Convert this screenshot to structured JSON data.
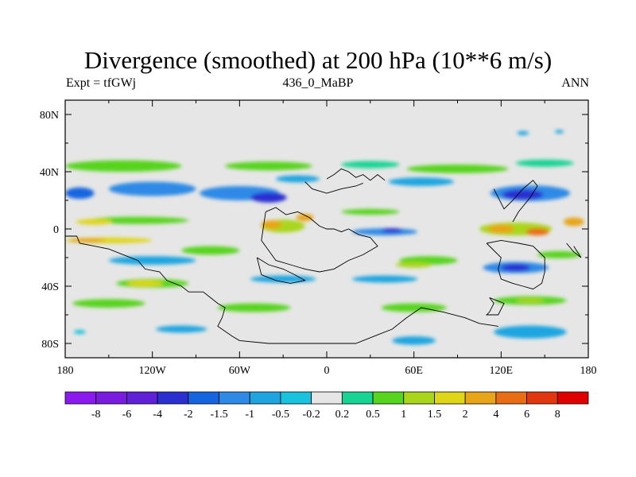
{
  "chart_data": {
    "type": "heatmap",
    "title": "Divergence (smoothed) at 200 hPa (10**6 m/s)",
    "subtitle_left": "Expt = tfGWj",
    "subtitle_center": "436_0_MaBP",
    "subtitle_right": "ANN",
    "x_ticks": [
      {
        "value": -180,
        "label": "180"
      },
      {
        "value": -120,
        "label": "120W"
      },
      {
        "value": -60,
        "label": "60W"
      },
      {
        "value": 0,
        "label": "0"
      },
      {
        "value": 60,
        "label": "60E"
      },
      {
        "value": 120,
        "label": "120E"
      },
      {
        "value": 180,
        "label": "180"
      }
    ],
    "y_ticks": [
      {
        "value": 80,
        "label": "80N"
      },
      {
        "value": 40,
        "label": "40N"
      },
      {
        "value": 0,
        "label": "0"
      },
      {
        "value": -40,
        "label": "40S"
      },
      {
        "value": -80,
        "label": "80S"
      }
    ],
    "xlim": [
      -180,
      180
    ],
    "ylim": [
      -90,
      90
    ],
    "colorbar": {
      "colors": [
        "#8b1aee",
        "#7a1cdf",
        "#5f20d8",
        "#2b2fd1",
        "#1565e0",
        "#2d8ae6",
        "#1ea5e0",
        "#19c3dd",
        "#e6e6e6",
        "#17d494",
        "#57d41e",
        "#a9d61a",
        "#dfd617",
        "#e8a517",
        "#e96d14",
        "#e2360f",
        "#e00000"
      ],
      "labels": [
        "-8",
        "-6",
        "-4",
        "-2",
        "-1.5",
        "-1",
        "-0.5",
        "-0.2",
        "0.2",
        "0.5",
        "1",
        "1.5",
        "2",
        "4",
        "6",
        "8"
      ]
    },
    "field_blobs": [
      {
        "lon": -140,
        "lat": 44,
        "w": 80,
        "h": 8,
        "value": 0.7
      },
      {
        "lon": 90,
        "lat": 42,
        "w": 70,
        "h": 6,
        "value": 0.7
      },
      {
        "lon": -40,
        "lat": 44,
        "w": 60,
        "h": 6,
        "value": 0.6
      },
      {
        "lon": 30,
        "lat": 45,
        "w": 40,
        "h": 5,
        "value": 0.5
      },
      {
        "lon": 150,
        "lat": 46,
        "w": 40,
        "h": 5,
        "value": 0.5
      },
      {
        "lon": -120,
        "lat": 28,
        "w": 60,
        "h": 10,
        "value": -1.2
      },
      {
        "lon": -60,
        "lat": 25,
        "w": 55,
        "h": 10,
        "value": -1.0
      },
      {
        "lon": -40,
        "lat": 22,
        "w": 25,
        "h": 7,
        "value": -2.6
      },
      {
        "lon": -170,
        "lat": 25,
        "w": 20,
        "h": 8,
        "value": -1.8
      },
      {
        "lon": 140,
        "lat": 25,
        "w": 55,
        "h": 11,
        "value": -1.3
      },
      {
        "lon": 135,
        "lat": 24,
        "w": 28,
        "h": 7,
        "value": -2.5
      },
      {
        "lon": 65,
        "lat": 33,
        "w": 45,
        "h": 6,
        "value": -0.6
      },
      {
        "lon": -20,
        "lat": 35,
        "w": 30,
        "h": 5,
        "value": -0.5
      },
      {
        "lon": -130,
        "lat": 6,
        "w": 70,
        "h": 5,
        "value": 0.8
      },
      {
        "lon": -160,
        "lat": 5,
        "w": 25,
        "h": 4,
        "value": 1.8
      },
      {
        "lon": -30,
        "lat": 2,
        "w": 30,
        "h": 9,
        "value": 1.4
      },
      {
        "lon": -38,
        "lat": 3,
        "w": 14,
        "h": 6,
        "value": 3.0
      },
      {
        "lon": -15,
        "lat": 8,
        "w": 12,
        "h": 5,
        "value": 2.2
      },
      {
        "lon": 30,
        "lat": 12,
        "w": 40,
        "h": 4,
        "value": 0.7
      },
      {
        "lon": 130,
        "lat": 0,
        "w": 50,
        "h": 9,
        "value": 1.5
      },
      {
        "lon": 120,
        "lat": 0,
        "w": 18,
        "h": 6,
        "value": 3.2
      },
      {
        "lon": 145,
        "lat": -2,
        "w": 16,
        "h": 5,
        "value": 4.5
      },
      {
        "lon": 170,
        "lat": 5,
        "w": 14,
        "h": 6,
        "value": 2.2
      },
      {
        "lon": -150,
        "lat": -8,
        "w": 60,
        "h": 4,
        "value": 1.6
      },
      {
        "lon": -165,
        "lat": -8,
        "w": 25,
        "h": 3,
        "value": 2.5
      },
      {
        "lon": 40,
        "lat": -2,
        "w": 45,
        "h": 5,
        "value": -1.0
      },
      {
        "lon": 45,
        "lat": -1,
        "w": 14,
        "h": 3,
        "value": -2.5
      },
      {
        "lon": -80,
        "lat": -15,
        "w": 40,
        "h": 6,
        "value": 0.7
      },
      {
        "lon": -120,
        "lat": -22,
        "w": 60,
        "h": 6,
        "value": -0.6
      },
      {
        "lon": 70,
        "lat": -22,
        "w": 40,
        "h": 6,
        "value": 0.6
      },
      {
        "lon": 60,
        "lat": -25,
        "w": 25,
        "h": 4,
        "value": 1.2
      },
      {
        "lon": 130,
        "lat": -27,
        "w": 45,
        "h": 8,
        "value": -1.2
      },
      {
        "lon": 130,
        "lat": -27,
        "w": 20,
        "h": 5,
        "value": -2.4
      },
      {
        "lon": 160,
        "lat": -18,
        "w": 30,
        "h": 5,
        "value": 0.7
      },
      {
        "lon": -120,
        "lat": -38,
        "w": 50,
        "h": 6,
        "value": 0.8
      },
      {
        "lon": -125,
        "lat": -38,
        "w": 25,
        "h": 4,
        "value": 1.6
      },
      {
        "lon": -30,
        "lat": -35,
        "w": 45,
        "h": 5,
        "value": -0.6
      },
      {
        "lon": 40,
        "lat": -35,
        "w": 45,
        "h": 5,
        "value": -0.6
      },
      {
        "lon": -150,
        "lat": -52,
        "w": 50,
        "h": 6,
        "value": 0.6
      },
      {
        "lon": -50,
        "lat": -55,
        "w": 50,
        "h": 6,
        "value": 0.6
      },
      {
        "lon": 60,
        "lat": -55,
        "w": 45,
        "h": 6,
        "value": 0.6
      },
      {
        "lon": 140,
        "lat": -50,
        "w": 50,
        "h": 6,
        "value": 0.7
      },
      {
        "lon": 140,
        "lat": -50,
        "w": 20,
        "h": 3,
        "value": 1.3
      },
      {
        "lon": -100,
        "lat": -70,
        "w": 35,
        "h": 5,
        "value": -0.5
      },
      {
        "lon": 140,
        "lat": -72,
        "w": 50,
        "h": 9,
        "value": -0.5
      },
      {
        "lon": 60,
        "lat": -78,
        "w": 30,
        "h": 6,
        "value": -0.5
      },
      {
        "lon": -170,
        "lat": -72,
        "w": 8,
        "h": 3,
        "value": -0.4
      },
      {
        "lon": 135,
        "lat": 67,
        "w": 8,
        "h": 3,
        "value": -0.5
      },
      {
        "lon": 160,
        "lat": 68,
        "w": 6,
        "h": 2.5,
        "value": -0.5
      }
    ],
    "coastlines": [
      [
        [
          -180,
          -5
        ],
        [
          -172,
          -5
        ],
        [
          -170,
          -10
        ],
        [
          -160,
          -12
        ],
        [
          -150,
          -14
        ],
        [
          -140,
          -18
        ],
        [
          -130,
          -22
        ],
        [
          -125,
          -28
        ],
        [
          -115,
          -30
        ],
        [
          -110,
          -36
        ],
        [
          -100,
          -40
        ],
        [
          -95,
          -44
        ],
        [
          -85,
          -44
        ],
        [
          -80,
          -48
        ],
        [
          -75,
          -52
        ],
        [
          -70,
          -55
        ],
        [
          -72,
          -62
        ],
        [
          -75,
          -68
        ],
        [
          -65,
          -75
        ],
        [
          -60,
          -78
        ],
        [
          -40,
          -80
        ],
        [
          -20,
          -80
        ],
        [
          0,
          -80
        ],
        [
          20,
          -80
        ],
        [
          35,
          -74
        ],
        [
          45,
          -70
        ],
        [
          55,
          -62
        ],
        [
          65,
          -55
        ],
        [
          80,
          -58
        ],
        [
          95,
          -62
        ],
        [
          105,
          -66
        ],
        [
          118,
          -68
        ]
      ],
      [
        [
          -42,
          12
        ],
        [
          -35,
          15
        ],
        [
          -28,
          10
        ],
        [
          -20,
          12
        ],
        [
          -12,
          8
        ],
        [
          -5,
          2
        ],
        [
          0,
          0
        ],
        [
          5,
          0
        ],
        [
          10,
          -2
        ],
        [
          15,
          0
        ],
        [
          22,
          -4
        ],
        [
          30,
          -6
        ],
        [
          35,
          -12
        ],
        [
          25,
          -18
        ],
        [
          15,
          -22
        ],
        [
          5,
          -28
        ],
        [
          -5,
          -30
        ],
        [
          -15,
          -28
        ],
        [
          -25,
          -25
        ],
        [
          -35,
          -22
        ],
        [
          -40,
          -15
        ],
        [
          -45,
          -8
        ],
        [
          -42,
          12
        ]
      ],
      [
        [
          -48,
          -20
        ],
        [
          -40,
          -25
        ],
        [
          -30,
          -28
        ],
        [
          -22,
          -32
        ],
        [
          -15,
          -36
        ],
        [
          -25,
          -38
        ],
        [
          -35,
          -36
        ],
        [
          -45,
          -32
        ],
        [
          -48,
          -20
        ]
      ],
      [
        [
          0,
          35
        ],
        [
          5,
          38
        ],
        [
          10,
          42
        ],
        [
          15,
          40
        ],
        [
          20,
          36
        ],
        [
          25,
          38
        ],
        [
          30,
          34
        ],
        [
          35,
          38
        ],
        [
          40,
          34
        ]
      ],
      [
        [
          -15,
          33
        ],
        [
          -10,
          28
        ],
        [
          0,
          25
        ],
        [
          10,
          28
        ],
        [
          20,
          30
        ],
        [
          25,
          32
        ]
      ],
      [
        [
          115,
          28
        ],
        [
          118,
          22
        ],
        [
          122,
          14
        ],
        [
          128,
          20
        ],
        [
          135,
          28
        ],
        [
          142,
          34
        ],
        [
          145,
          30
        ],
        [
          140,
          22
        ],
        [
          132,
          12
        ],
        [
          128,
          5
        ]
      ],
      [
        [
          110,
          -10
        ],
        [
          115,
          -15
        ],
        [
          120,
          -20
        ],
        [
          118,
          -28
        ],
        [
          120,
          -35
        ],
        [
          128,
          -38
        ],
        [
          135,
          -40
        ],
        [
          142,
          -42
        ],
        [
          148,
          -38
        ],
        [
          150,
          -30
        ],
        [
          150,
          -20
        ],
        [
          142,
          -12
        ],
        [
          132,
          -10
        ],
        [
          120,
          -8
        ],
        [
          110,
          -10
        ]
      ],
      [
        [
          112,
          -48
        ],
        [
          115,
          -52
        ],
        [
          112,
          -58
        ],
        [
          110,
          -60
        ],
        [
          118,
          -60
        ],
        [
          122,
          -52
        ],
        [
          112,
          -48
        ]
      ],
      [
        [
          165,
          -10
        ],
        [
          170,
          -16
        ],
        [
          175,
          -20
        ],
        [
          170,
          -12
        ]
      ]
    ]
  }
}
